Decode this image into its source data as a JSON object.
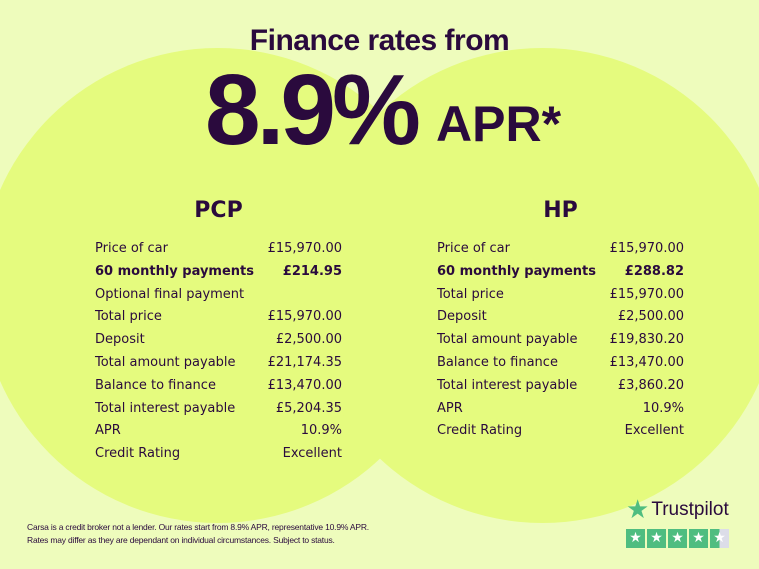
{
  "headline": "Finance rates from",
  "rate": "8.9%",
  "rate_suffix": "APR*",
  "pcp": {
    "title": "PCP",
    "rows": [
      {
        "label": "Price of car",
        "value": "£15,970.00"
      },
      {
        "label": "60 monthly payments",
        "value": "£214.95",
        "bold": true
      },
      {
        "label": "Optional final payment",
        "value": ""
      },
      {
        "label": "Total price",
        "value": "£15,970.00"
      },
      {
        "label": "Deposit",
        "value": "£2,500.00"
      },
      {
        "label": "Total amount payable",
        "value": "£21,174.35"
      },
      {
        "label": "Balance to finance",
        "value": "£13,470.00"
      },
      {
        "label": "Total interest payable",
        "value": "£5,204.35"
      },
      {
        "label": "APR",
        "value": "10.9%"
      },
      {
        "label": "Credit Rating",
        "value": "Excellent"
      }
    ]
  },
  "hp": {
    "title": "HP",
    "rows": [
      {
        "label": "Price of car",
        "value": "£15,970.00"
      },
      {
        "label": "60 monthly payments",
        "value": "£288.82",
        "bold": true
      },
      {
        "label": "Total price",
        "value": "£15,970.00"
      },
      {
        "label": "Deposit",
        "value": "£2,500.00"
      },
      {
        "label": "Total amount payable",
        "value": "£19,830.20"
      },
      {
        "label": "Balance to finance",
        "value": "£13,470.00"
      },
      {
        "label": "Total interest payable",
        "value": "£3,860.20"
      },
      {
        "label": "APR",
        "value": "10.9%"
      },
      {
        "label": "Credit Rating",
        "value": "Excellent"
      }
    ]
  },
  "disclaimer": [
    "Carsa is a credit broker not a lender. Our rates start from 8.9% APR, representative 10.9% APR.",
    "Rates may differ as they are dependant on individual circumstances. Subject to status."
  ],
  "trustpilot": {
    "label": "Trustpilot",
    "rating_stars": 4.5,
    "icon": "star-icon",
    "color": "#4fbd80"
  },
  "colors": {
    "text": "#2a0a3d",
    "background": "#eefcbc",
    "circle": "#e5fb7e"
  }
}
